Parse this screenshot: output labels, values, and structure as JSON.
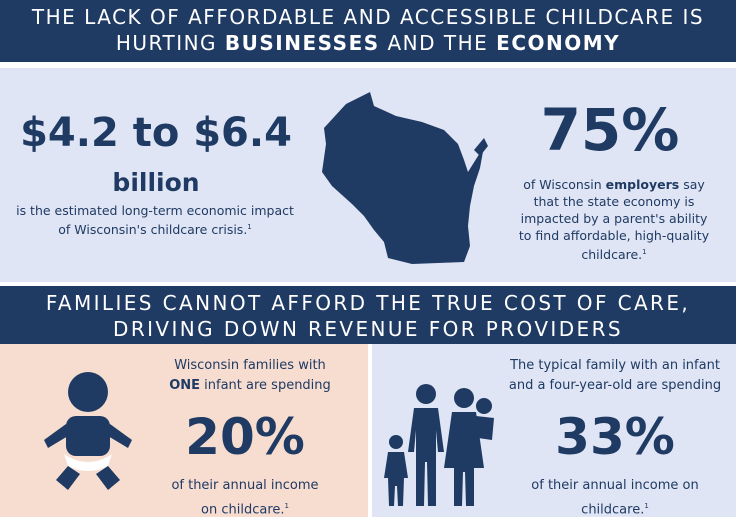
{
  "top_banner": {
    "line1": "THE LACK OF AFFORDABLE AND ACCESSIBLE CHILDCARE IS",
    "line2_pre": "HURTING ",
    "line2_bold1": "BUSINESSES",
    "line2_mid": " AND THE ",
    "line2_bold2": "ECONOMY"
  },
  "impact_stat": {
    "value": "$4.2 to $6.4",
    "unit": "billion",
    "desc_line1": "is the estimated long-term economic impact",
    "desc_line2": "of Wisconsin's childcare crisis.",
    "footnote": "1"
  },
  "employer_stat": {
    "value": "75%",
    "line1_pre": "of Wisconsin ",
    "line1_bold": "employers",
    "line1_post": " say",
    "line2": "that the state economy is",
    "line3": "impacted by a parent's ability",
    "line4": "to find affordable, high-quality",
    "line5": "childcare.",
    "footnote": "1"
  },
  "middle_banner": {
    "line1": "FAMILIES CANNOT AFFORD THE TRUE COST OF CARE,",
    "line2": "DRIVING DOWN REVENUE FOR PROVIDERS"
  },
  "infant_stat": {
    "line1": "Wisconsin families with",
    "line2_bold": "ONE",
    "line2_post": " infant are spending",
    "value": "20%",
    "line3": "of their annual income",
    "line4": "on childcare.",
    "footnote": "1"
  },
  "family_stat": {
    "line1": "The typical family with an infant",
    "line2": "and a four-year-old are spending",
    "value": "33%",
    "line3": "of their annual income on",
    "line4": "childcare.",
    "footnote": "1"
  },
  "colors": {
    "navy": "#1f3a63",
    "light_blue": "#dfe5f4",
    "peach": "#f7dcd0"
  },
  "icons": [
    "wisconsin-map-icon",
    "baby-icon",
    "family-icon"
  ]
}
